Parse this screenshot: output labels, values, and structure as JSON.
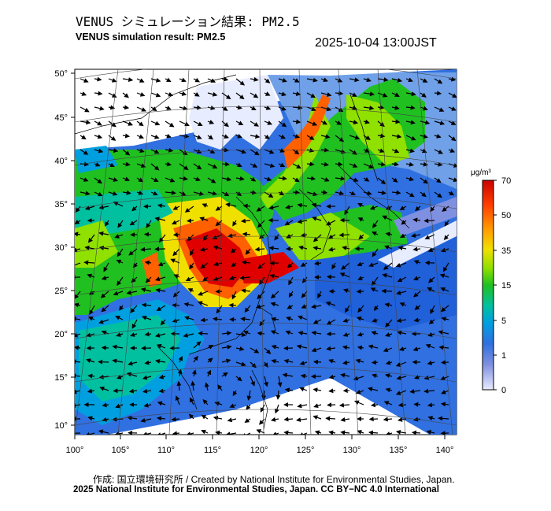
{
  "title_ja": "VENUS シミュレーション結果: PM2.5",
  "title_en": "VENUS simulation result: PM2.5",
  "datetime": "2025-10-04 13:00JST",
  "map": {
    "lat_ticks": [
      "50°",
      "45°",
      "40°",
      "35°",
      "30°",
      "25°",
      "20°",
      "15°",
      "10°"
    ],
    "lon_ticks": [
      "100°",
      "105°",
      "110°",
      "115°",
      "120°",
      "125°",
      "130°",
      "135°",
      "140°"
    ]
  },
  "colorbar": {
    "unit": "μg/m³",
    "labels": [
      "70",
      "50",
      "35",
      "15",
      "5",
      "1",
      "0"
    ],
    "colors": [
      "#cc0000",
      "#ff4000",
      "#ffa000",
      "#f0e000",
      "#90e000",
      "#20c020",
      "#00c0a0",
      "#00a0e0",
      "#3070e0",
      "#8090e0",
      "#e8ecff"
    ]
  },
  "credits": {
    "line1": "作成: 国立環境研究所 / Created by National Institute for Environmental Studies, Japan.",
    "line2": "2025 National Institute for Environmental Studies, Japan. CC BY−NC 4.0 International"
  }
}
